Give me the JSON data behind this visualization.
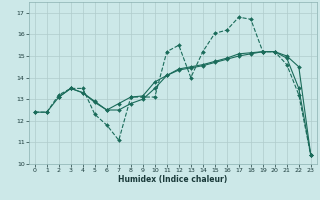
{
  "xlabel": "Humidex (Indice chaleur)",
  "xlim": [
    -0.5,
    23.5
  ],
  "ylim": [
    10,
    17.5
  ],
  "yticks": [
    10,
    11,
    12,
    13,
    14,
    15,
    16,
    17
  ],
  "xticks": [
    0,
    1,
    2,
    3,
    4,
    5,
    6,
    7,
    8,
    9,
    10,
    11,
    12,
    13,
    14,
    15,
    16,
    17,
    18,
    19,
    20,
    21,
    22,
    23
  ],
  "bg_color": "#cce8e8",
  "grid_color": "#b0cccc",
  "line_color": "#1a6b5a",
  "curve1_x": [
    0,
    1,
    2,
    3,
    4,
    5,
    6,
    7,
    8,
    9,
    10,
    11,
    12,
    13,
    14,
    15,
    16,
    17,
    18,
    19,
    20,
    21,
    22,
    23
  ],
  "curve1_y": [
    12.4,
    12.4,
    13.2,
    13.5,
    13.5,
    12.3,
    11.8,
    11.1,
    13.1,
    13.1,
    13.1,
    15.2,
    15.5,
    14.0,
    15.2,
    16.05,
    16.2,
    16.8,
    16.7,
    15.2,
    15.2,
    14.6,
    13.2,
    10.4
  ],
  "curve2_x": [
    2,
    3,
    4,
    5,
    6,
    7,
    8,
    9,
    10,
    11,
    12,
    13,
    14,
    15,
    16,
    17,
    18,
    19,
    20,
    21,
    22,
    23
  ],
  "curve2_y": [
    13.1,
    13.5,
    13.3,
    12.9,
    12.5,
    12.8,
    13.1,
    13.15,
    13.8,
    14.1,
    14.35,
    14.45,
    14.55,
    14.7,
    14.85,
    15.0,
    15.1,
    15.2,
    15.2,
    15.0,
    14.5,
    10.4
  ],
  "curve3_x": [
    0,
    1,
    2,
    3,
    4,
    5,
    6,
    7,
    8,
    9,
    10,
    11,
    12,
    13,
    14,
    15,
    16,
    17,
    18,
    19,
    20,
    21,
    22,
    23
  ],
  "curve3_y": [
    12.4,
    12.4,
    13.1,
    13.5,
    13.3,
    12.85,
    12.5,
    12.5,
    12.8,
    13.0,
    13.5,
    14.1,
    14.4,
    14.5,
    14.6,
    14.75,
    14.9,
    15.1,
    15.15,
    15.2,
    15.2,
    14.9,
    13.5,
    10.4
  ]
}
